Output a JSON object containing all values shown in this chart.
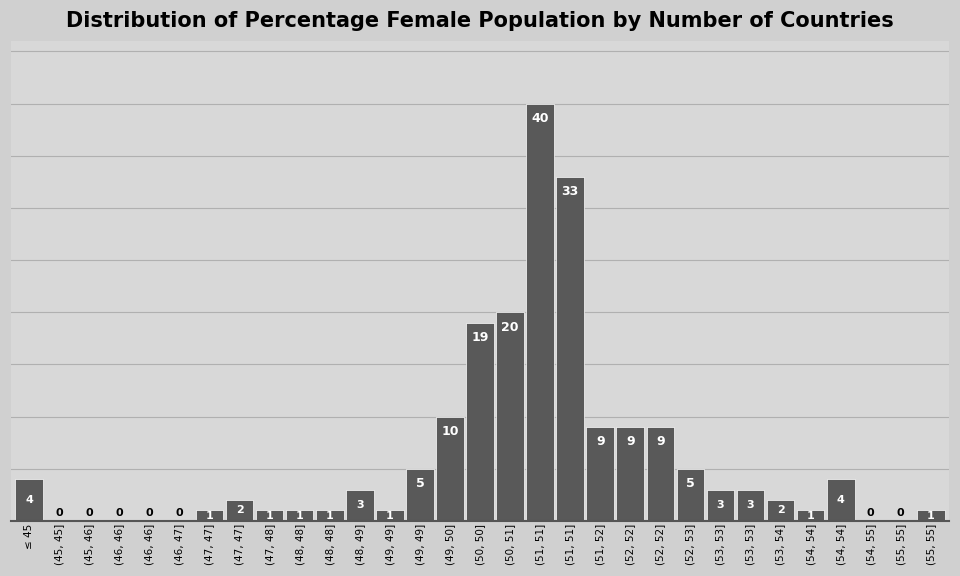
{
  "title": "Distribution of Percentage Female Population by Number of Countries",
  "x_labels": [
    "≤ 45",
    "(45, 45]",
    "(45, 46]",
    "(46, 46]",
    "(46, 46]",
    "(46, 47]",
    "(47, 47]",
    "(47, 47]",
    "(47, 48]",
    "(48, 48]",
    "(48, 48]",
    "(48, 49]",
    "(49, 49]",
    "(49, 49]",
    "(49, 50]",
    "(50, 50]",
    "(50, 51]",
    "(51, 51]",
    "(51, 51]",
    "(51, 52]",
    "(52, 52]",
    "(52, 52]",
    "(52, 53]",
    "(53, 53]",
    "(53, 53]",
    "(53, 54]",
    "(54, 54]",
    "(54, 54]",
    "(54, 55]",
    "(55, 55]",
    "(55, 55]"
  ],
  "values": [
    4,
    0,
    0,
    0,
    0,
    0,
    1,
    2,
    1,
    1,
    1,
    3,
    1,
    5,
    10,
    19,
    20,
    40,
    33,
    9,
    9,
    9,
    5,
    3,
    3,
    2,
    1,
    4,
    0,
    0,
    1
  ],
  "bar_color": "#595959",
  "bg_color_top": "#e8e8e8",
  "bg_color_bottom": "#c8c8c8",
  "grid_color": "#b0b0b0",
  "title_fontsize": 15,
  "tick_fontsize": 7.5,
  "label_fontsize_large": 9,
  "label_fontsize_small": 8,
  "ylim": [
    0,
    46
  ]
}
